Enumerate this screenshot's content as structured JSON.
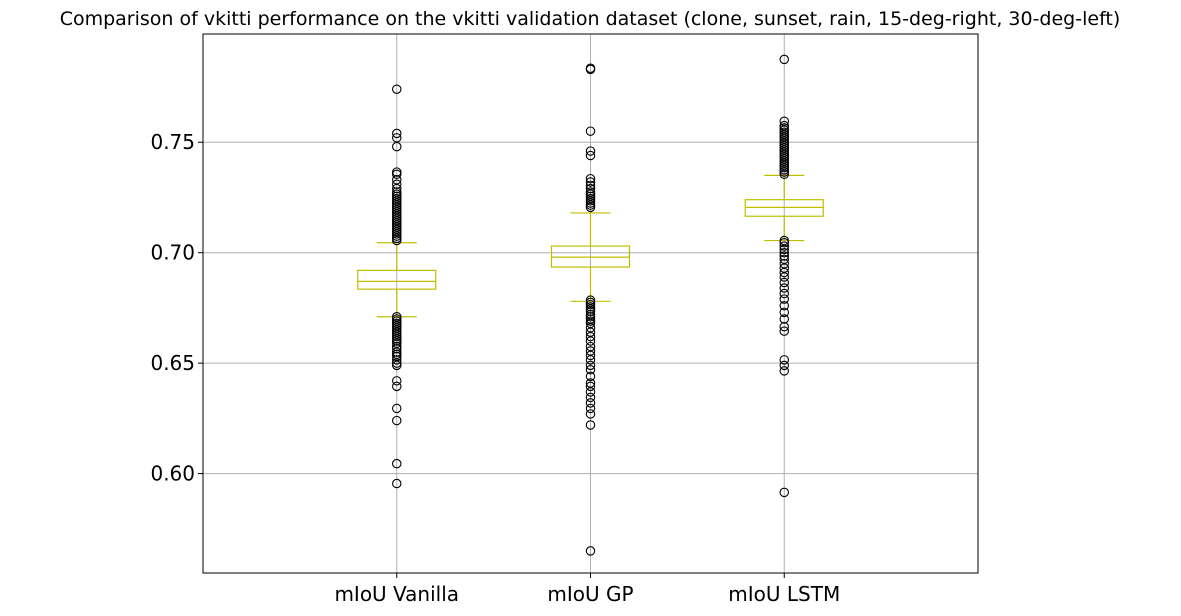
{
  "chart_data": {
    "type": "box",
    "title": "Comparison of vkitti performance on the vkitti validation dataset (clone, sunset, rain, 15-deg-right, 30-deg-left)",
    "xlabel": "",
    "ylabel": "",
    "ylim": [
      0.555,
      0.799
    ],
    "yticks": [
      0.6,
      0.65,
      0.7,
      0.75
    ],
    "ytick_labels": [
      "0.60",
      "0.65",
      "0.70",
      "0.75"
    ],
    "grid": true,
    "box_color": "#bfbf00",
    "outlier_color": "#000000",
    "categories": [
      "mIoU Vanilla",
      "mIoU GP",
      "mIoU LSTM"
    ],
    "boxes": [
      {
        "name": "mIoU Vanilla",
        "whisker_low": 0.671,
        "q1": 0.6835,
        "median": 0.687,
        "q3": 0.692,
        "whisker_high": 0.7045,
        "outliers": [
          0.774,
          0.754,
          0.752,
          0.748,
          0.7365,
          0.7355,
          0.733,
          0.731,
          0.729,
          0.7275,
          0.7265,
          0.7255,
          0.7245,
          0.7235,
          0.7225,
          0.7215,
          0.7205,
          0.7195,
          0.7185,
          0.7175,
          0.7165,
          0.7155,
          0.7145,
          0.7135,
          0.7125,
          0.7115,
          0.7105,
          0.7095,
          0.7085,
          0.7075,
          0.7065,
          0.7055,
          0.671,
          0.67,
          0.669,
          0.668,
          0.667,
          0.666,
          0.665,
          0.664,
          0.663,
          0.662,
          0.661,
          0.66,
          0.659,
          0.6575,
          0.6565,
          0.655,
          0.654,
          0.653,
          0.6515,
          0.65,
          0.649,
          0.642,
          0.6395,
          0.6295,
          0.624,
          0.6045,
          0.5955
        ]
      },
      {
        "name": "mIoU GP",
        "whisker_low": 0.678,
        "q1": 0.6935,
        "median": 0.698,
        "q3": 0.703,
        "whisker_high": 0.718,
        "outliers": [
          0.7835,
          0.783,
          0.755,
          0.746,
          0.744,
          0.7335,
          0.732,
          0.7305,
          0.729,
          0.7275,
          0.7265,
          0.7255,
          0.7245,
          0.7235,
          0.7225,
          0.7215,
          0.7205,
          0.6785,
          0.6775,
          0.6765,
          0.6755,
          0.6745,
          0.6735,
          0.672,
          0.671,
          0.67,
          0.669,
          0.668,
          0.666,
          0.664,
          0.662,
          0.66,
          0.6575,
          0.6555,
          0.6535,
          0.6515,
          0.649,
          0.647,
          0.644,
          0.641,
          0.6395,
          0.637,
          0.6345,
          0.632,
          0.6295,
          0.627,
          0.622,
          0.565
        ]
      },
      {
        "name": "mIoU LSTM",
        "whisker_low": 0.7055,
        "q1": 0.7165,
        "median": 0.7205,
        "q3": 0.724,
        "whisker_high": 0.735,
        "outliers": [
          0.7875,
          0.7595,
          0.7575,
          0.7565,
          0.7555,
          0.7545,
          0.7535,
          0.7525,
          0.7515,
          0.7505,
          0.7495,
          0.7485,
          0.7475,
          0.7465,
          0.7455,
          0.7445,
          0.7435,
          0.7425,
          0.7415,
          0.7405,
          0.7395,
          0.7385,
          0.7375,
          0.7365,
          0.7355,
          0.7055,
          0.7045,
          0.703,
          0.7015,
          0.7,
          0.6985,
          0.697,
          0.695,
          0.693,
          0.691,
          0.689,
          0.6865,
          0.684,
          0.6815,
          0.679,
          0.676,
          0.673,
          0.67,
          0.6665,
          0.6645,
          0.6515,
          0.649,
          0.6465,
          0.5915
        ]
      }
    ]
  }
}
